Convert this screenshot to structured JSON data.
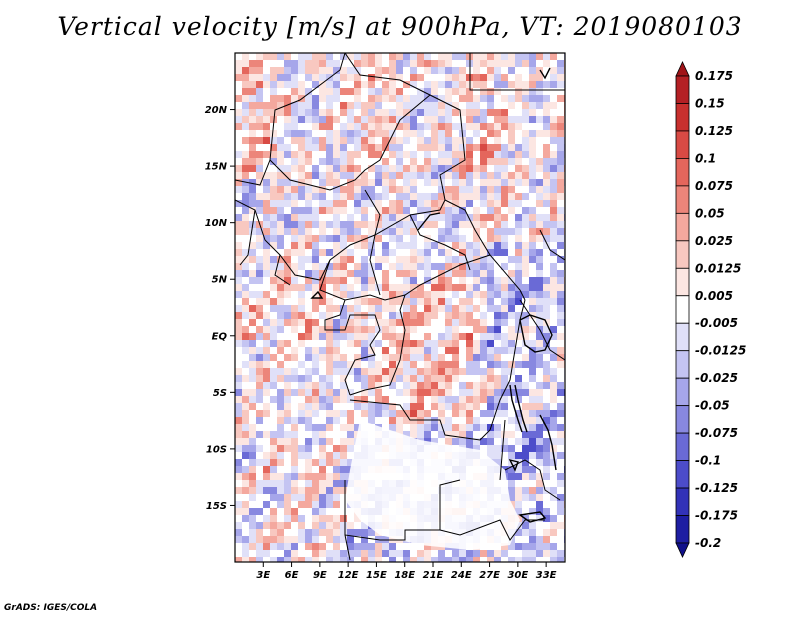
{
  "title": "Vertical velocity [m/s] at 900hPa, VT: 2019080103",
  "footer": "GrADS: IGES/COLA",
  "map": {
    "variable": "Vertical velocity",
    "units": "m/s",
    "level": "900hPa",
    "valid_time": "2019080103",
    "lon_range": [
      0,
      35
    ],
    "lat_range": [
      -20,
      25
    ],
    "lat_ticks": [
      {
        "value": 20,
        "label": "20N"
      },
      {
        "value": 15,
        "label": "15N"
      },
      {
        "value": 10,
        "label": "10N"
      },
      {
        "value": 5,
        "label": "5N"
      },
      {
        "value": 0,
        "label": "EQ"
      },
      {
        "value": -5,
        "label": "5S"
      },
      {
        "value": -10,
        "label": "10S"
      },
      {
        "value": -15,
        "label": "15S"
      }
    ],
    "lon_ticks": [
      {
        "value": 3,
        "label": "3E"
      },
      {
        "value": 6,
        "label": "6E"
      },
      {
        "value": 9,
        "label": "9E"
      },
      {
        "value": 12,
        "label": "12E"
      },
      {
        "value": 15,
        "label": "15E"
      },
      {
        "value": 18,
        "label": "18E"
      },
      {
        "value": 21,
        "label": "21E"
      },
      {
        "value": 24,
        "label": "24E"
      },
      {
        "value": 27,
        "label": "27E"
      },
      {
        "value": 30,
        "label": "30E"
      },
      {
        "value": 33,
        "label": "33E"
      }
    ]
  },
  "colorbar": {
    "labels": [
      "0.175",
      "0.15",
      "0.125",
      "0.1",
      "0.075",
      "0.05",
      "0.025",
      "0.0125",
      "0.005",
      "-0.005",
      "-0.0125",
      "-0.025",
      "-0.05",
      "-0.075",
      "-0.1",
      "-0.125",
      "-0.175",
      "-0.2"
    ],
    "colors": [
      "#a01418",
      "#b42024",
      "#c8302e",
      "#d84a44",
      "#e4665c",
      "#ec857a",
      "#f4a89e",
      "#f8c8c0",
      "#fce6e2",
      "#ffffff",
      "#e0e0f8",
      "#c4c4f2",
      "#a6a6ea",
      "#8888e0",
      "#6a6ad6",
      "#4c4cca",
      "#3232b8",
      "#1e1ea2",
      "#10108a"
    ]
  }
}
